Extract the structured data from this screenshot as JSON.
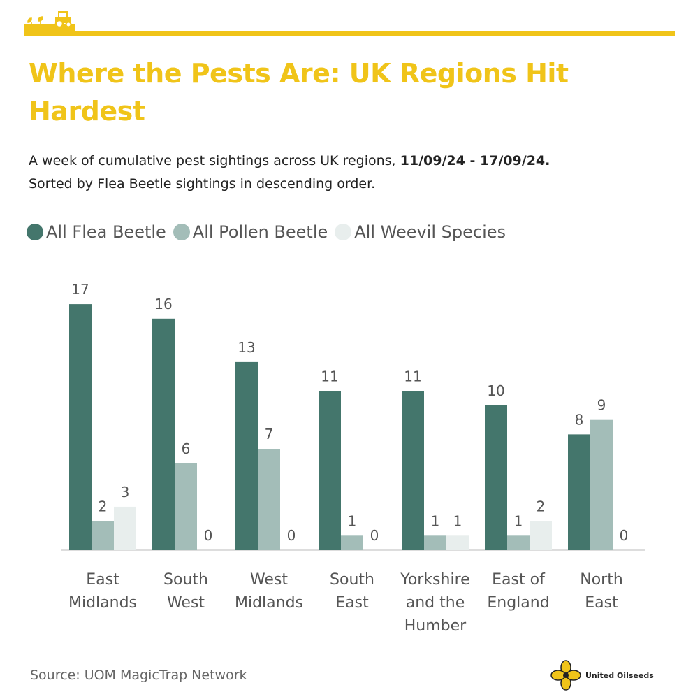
{
  "header": {
    "title": "Where the Pests Are: UK Regions Hit Hardest",
    "subtitle_prefix": "A week of cumulative pest sightings across UK regions, ",
    "subtitle_dates": "11/09/24 - 17/09/24.",
    "subtitle_line2": "Sorted by Flea Beetle sightings in descending order."
  },
  "colors": {
    "accent": "#f0c419",
    "flea": "#44766c",
    "pollen": "#a3bdb8",
    "weevil": "#e8eeed",
    "axis": "#bbbbbb"
  },
  "icons": {
    "header_logo": "seedling-tractor-icon",
    "brand_logo": "oilseed-flower-icon"
  },
  "footer": {
    "source": "Source: UOM MagicTrap Network",
    "brand_name": "United Oilseeds"
  },
  "chart_data": {
    "type": "bar",
    "categories": [
      [
        "East",
        "Midlands"
      ],
      [
        "South",
        "West"
      ],
      [
        "West",
        "Midlands"
      ],
      [
        "South",
        "East"
      ],
      [
        "Yorkshire",
        "and the",
        "Humber"
      ],
      [
        "East of",
        "England"
      ],
      [
        "North",
        "East"
      ]
    ],
    "series": [
      {
        "name": "All Flea Beetle",
        "color": "#44766c",
        "values": [
          17,
          16,
          13,
          11,
          11,
          10,
          8
        ]
      },
      {
        "name": "All Pollen Beetle",
        "color": "#a3bdb8",
        "values": [
          2,
          6,
          7,
          1,
          1,
          1,
          9
        ]
      },
      {
        "name": "All Weevil Species",
        "color": "#e8eeed",
        "values": [
          3,
          0,
          0,
          0,
          1,
          2,
          0
        ]
      }
    ],
    "ylim": [
      0,
      17
    ],
    "data_labels": true,
    "legend_position": "top-left",
    "grid": false
  }
}
